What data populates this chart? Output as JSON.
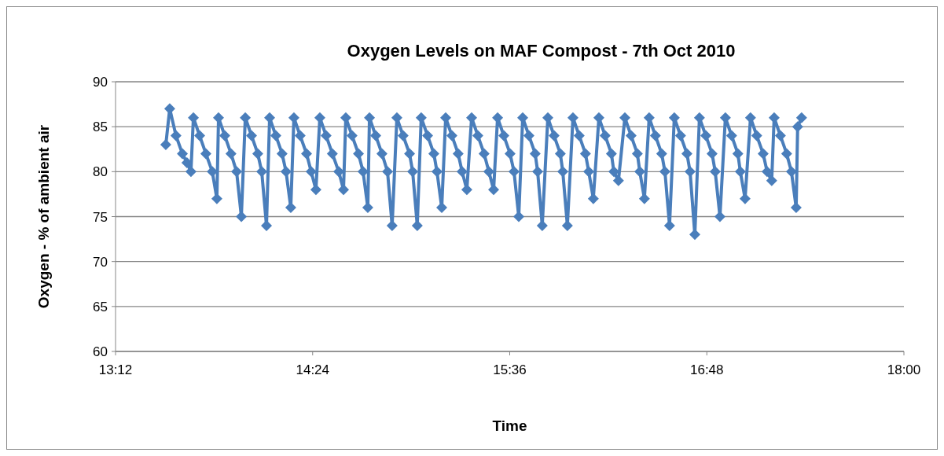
{
  "chart_data": {
    "type": "line",
    "title": "Oxygen Levels on MAF Compost - 7th Oct 2010",
    "xlabel": "Time",
    "ylabel": "Oxygen - % of ambient air",
    "xlim": [
      13.2,
      18
    ],
    "xticks": [
      {
        "value": 13.2,
        "label": "13:12"
      },
      {
        "value": 14.4,
        "label": "14:24"
      },
      {
        "value": 15.6,
        "label": "15:36"
      },
      {
        "value": 16.8,
        "label": "16:48"
      },
      {
        "value": 18,
        "label": "18:00"
      }
    ],
    "ylim": [
      60,
      90
    ],
    "yticks": [
      60,
      65,
      70,
      75,
      80,
      85,
      90
    ],
    "grid": "y",
    "marker": "diamond",
    "line_style": "solid",
    "series": [
      {
        "color": "#4a7ebb",
        "x": [
          13.506,
          13.53,
          13.568,
          13.607,
          13.635,
          13.659,
          13.674,
          13.712,
          13.75,
          13.789,
          13.817,
          13.827,
          13.865,
          13.903,
          13.937,
          13.966,
          13.99,
          14.028,
          14.066,
          14.09,
          14.119,
          14.138,
          14.176,
          14.214,
          14.238,
          14.267,
          14.286,
          14.324,
          14.363,
          14.391,
          14.42,
          14.444,
          14.482,
          14.52,
          14.559,
          14.588,
          14.602,
          14.64,
          14.679,
          14.707,
          14.736,
          14.746,
          14.784,
          14.822,
          14.856,
          14.884,
          14.913,
          14.951,
          14.99,
          15.009,
          15.037,
          15.061,
          15.1,
          15.138,
          15.157,
          15.186,
          15.21,
          15.248,
          15.286,
          15.31,
          15.339,
          15.368,
          15.406,
          15.444,
          15.473,
          15.502,
          15.526,
          15.564,
          15.602,
          15.626,
          15.655,
          15.679,
          15.717,
          15.755,
          15.77,
          15.798,
          15.832,
          15.87,
          15.908,
          15.923,
          15.951,
          15.985,
          16.023,
          16.061,
          16.081,
          16.109,
          16.143,
          16.181,
          16.219,
          16.234,
          16.262,
          16.301,
          16.339,
          16.377,
          16.392,
          16.42,
          16.449,
          16.487,
          16.525,
          16.545,
          16.573,
          16.602,
          16.64,
          16.679,
          16.698,
          16.727,
          16.755,
          16.794,
          16.832,
          16.851,
          16.88,
          16.913,
          16.951,
          16.989,
          17.004,
          17.033,
          17.066,
          17.104,
          17.143,
          17.167,
          17.195,
          17.21,
          17.248,
          17.286,
          17.315,
          17.344,
          17.353,
          17.377
        ],
        "values": [
          83,
          87,
          84,
          82,
          81,
          80,
          86,
          84,
          82,
          80,
          77,
          86,
          84,
          82,
          80,
          75,
          86,
          84,
          82,
          80,
          74,
          86,
          84,
          82,
          80,
          76,
          86,
          84,
          82,
          80,
          78,
          86,
          84,
          82,
          80,
          78,
          86,
          84,
          82,
          80,
          76,
          86,
          84,
          82,
          80,
          74,
          86,
          84,
          82,
          80,
          74,
          86,
          84,
          82,
          80,
          76,
          86,
          84,
          82,
          80,
          78,
          86,
          84,
          82,
          80,
          78,
          86,
          84,
          82,
          80,
          75,
          86,
          84,
          82,
          80,
          74,
          86,
          84,
          82,
          80,
          74,
          86,
          84,
          82,
          80,
          77,
          86,
          84,
          82,
          80,
          79,
          86,
          84,
          82,
          80,
          77,
          86,
          84,
          82,
          80,
          74,
          86,
          84,
          82,
          80,
          73,
          86,
          84,
          82,
          80,
          75,
          86,
          84,
          82,
          80,
          77,
          86,
          84,
          82,
          80,
          79,
          86,
          84,
          82,
          80,
          76,
          85,
          86
        ]
      }
    ]
  }
}
